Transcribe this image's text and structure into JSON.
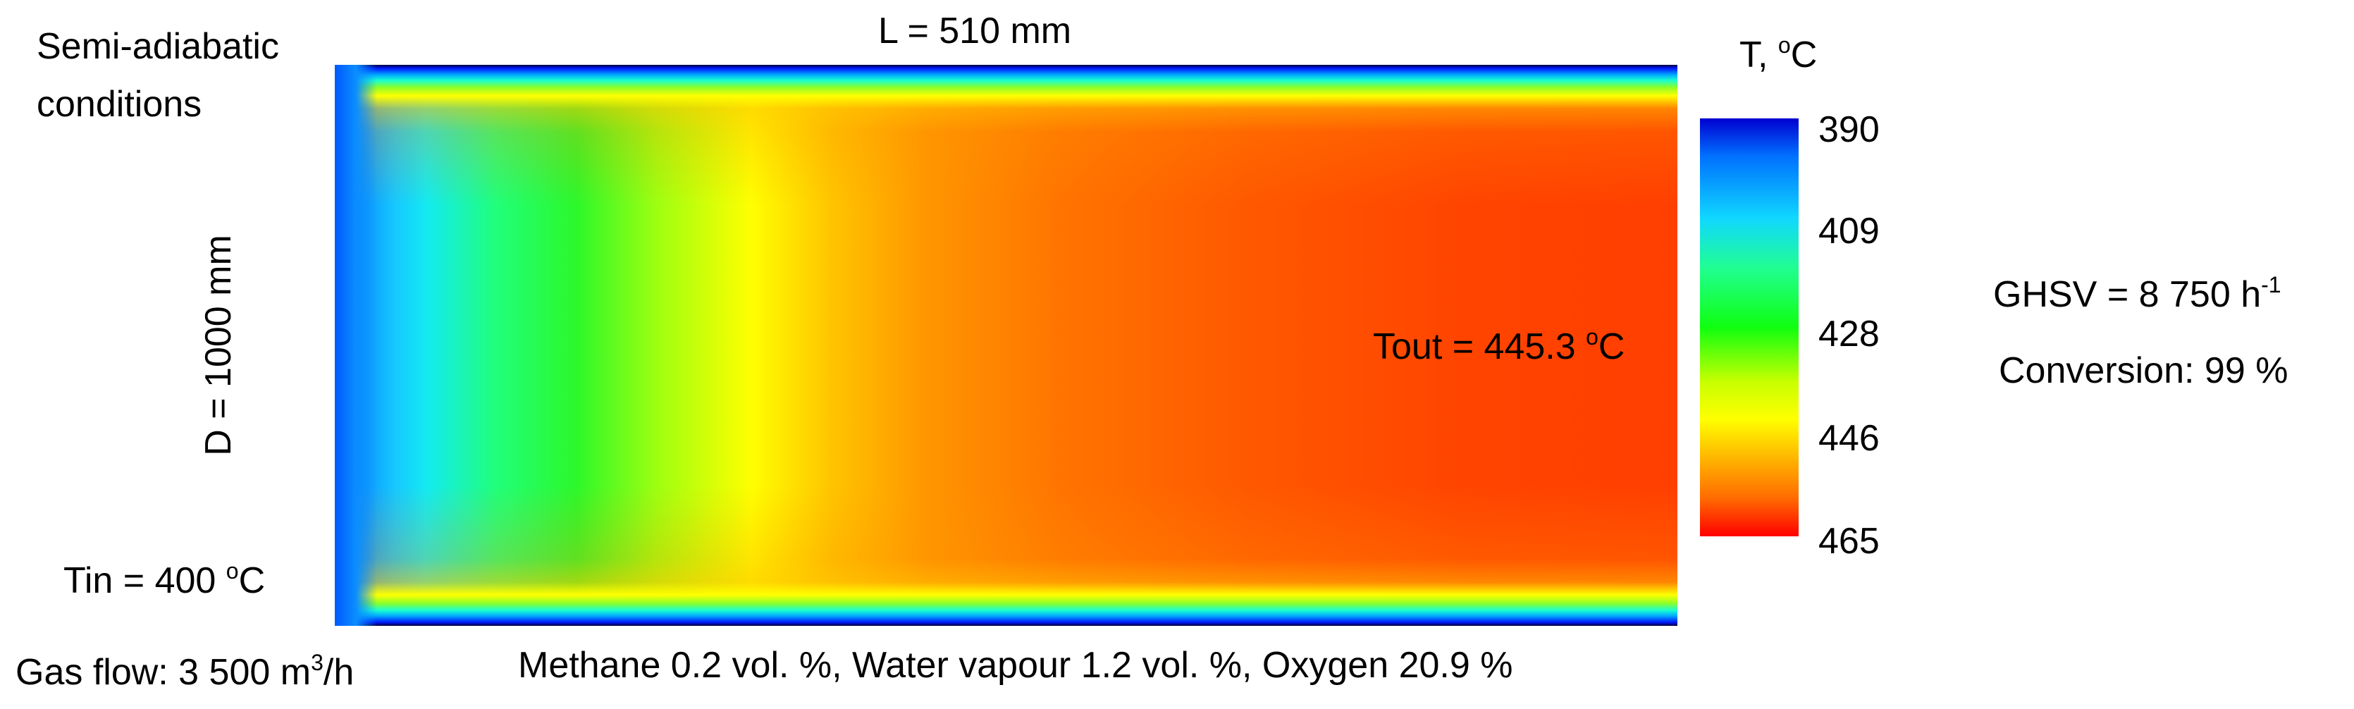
{
  "conditions": {
    "line1": "Semi-adiabatic",
    "line2": "conditions"
  },
  "length_label": "L = 510 mm",
  "diameter_label": "D = 1000 mm",
  "inlet": {
    "prefix": "Tin = 400 ",
    "sup": "o",
    "unit": "C"
  },
  "outlet": {
    "prefix": "Tout = 445.3 ",
    "sup": "o",
    "unit": "C"
  },
  "gas_flow": {
    "prefix": "Gas flow: 3 500 m",
    "sup": "3",
    "suffix": "/h"
  },
  "composition": "Methane 0.2 vol. %, Water vapour 1.2 vol. %, Oxygen 20.9 %",
  "colorbar": {
    "title_prefix": "T, ",
    "title_sup": "o",
    "title_unit": "C",
    "ticks": [
      "390",
      "409",
      "428",
      "446",
      "465"
    ]
  },
  "ghsv": {
    "prefix": "GHSV = 8 750 h",
    "sup": "-1"
  },
  "conversion": "Conversion: 99 %"
}
